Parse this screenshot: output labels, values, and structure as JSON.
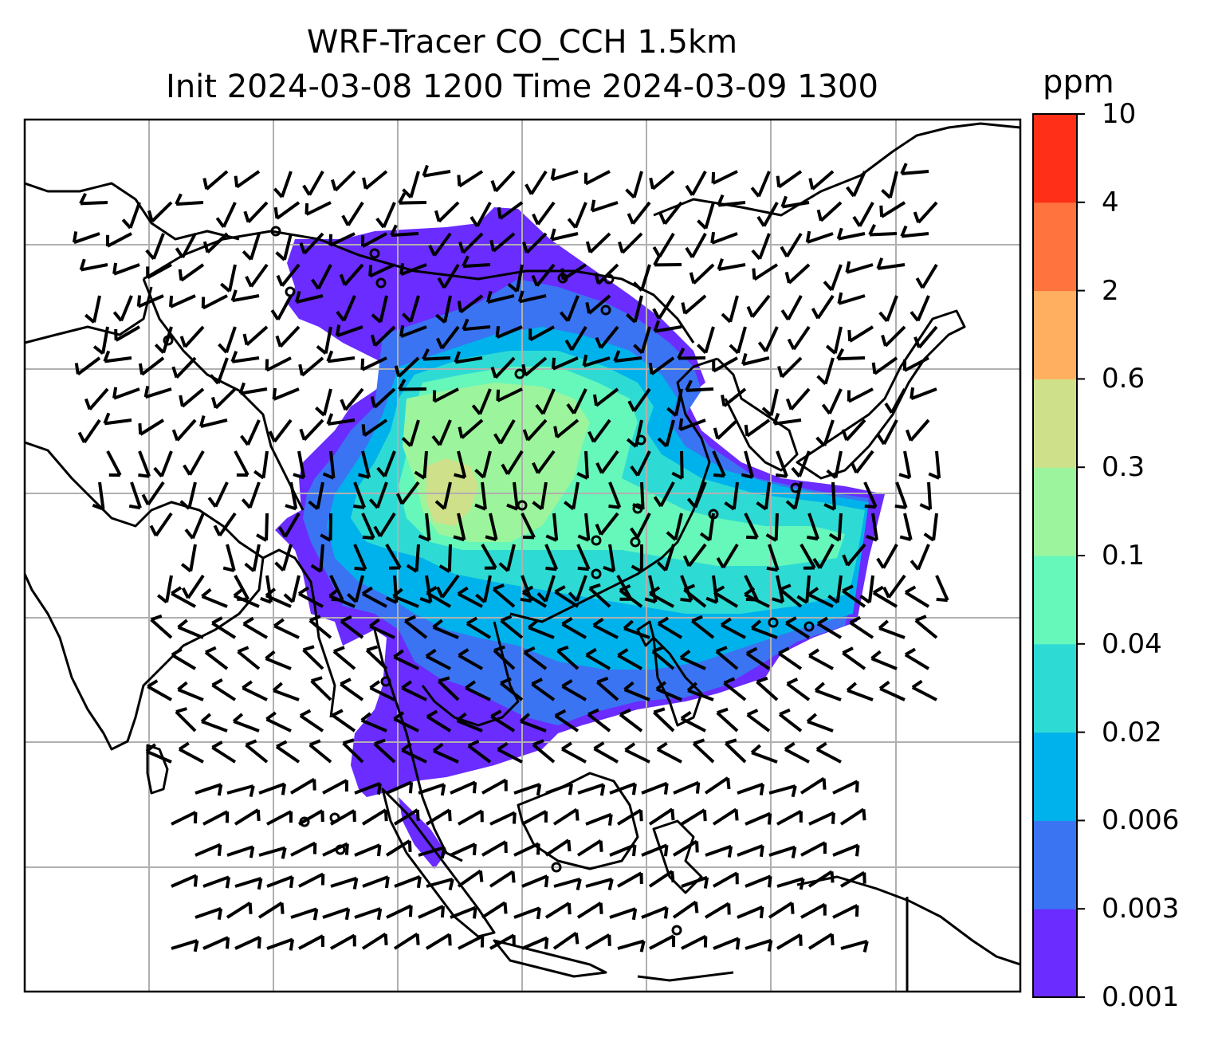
{
  "title": {
    "line1": "WRF-Tracer CO_CCH 1.5km",
    "line2": "Init 2024-03-08 1200 Time 2024-03-09 1300"
  },
  "colorbar": {
    "unit": "ppm",
    "levels": [
      "0.001",
      "0.003",
      "0.006",
      "0.02",
      "0.04",
      "0.1",
      "0.3",
      "0.6",
      "2",
      "4",
      "10"
    ],
    "colors": [
      "#6a2cff",
      "#3a74f2",
      "#00b2eb",
      "#2edbd4",
      "#66f7bb",
      "#9cf59c",
      "#cfe08a",
      "#ffaf5f",
      "#ff733e",
      "#ff2f18"
    ]
  },
  "map": {
    "coastline_color": "#000000",
    "grid_color": "#b0b0b0",
    "frame_color": "#000000"
  }
}
